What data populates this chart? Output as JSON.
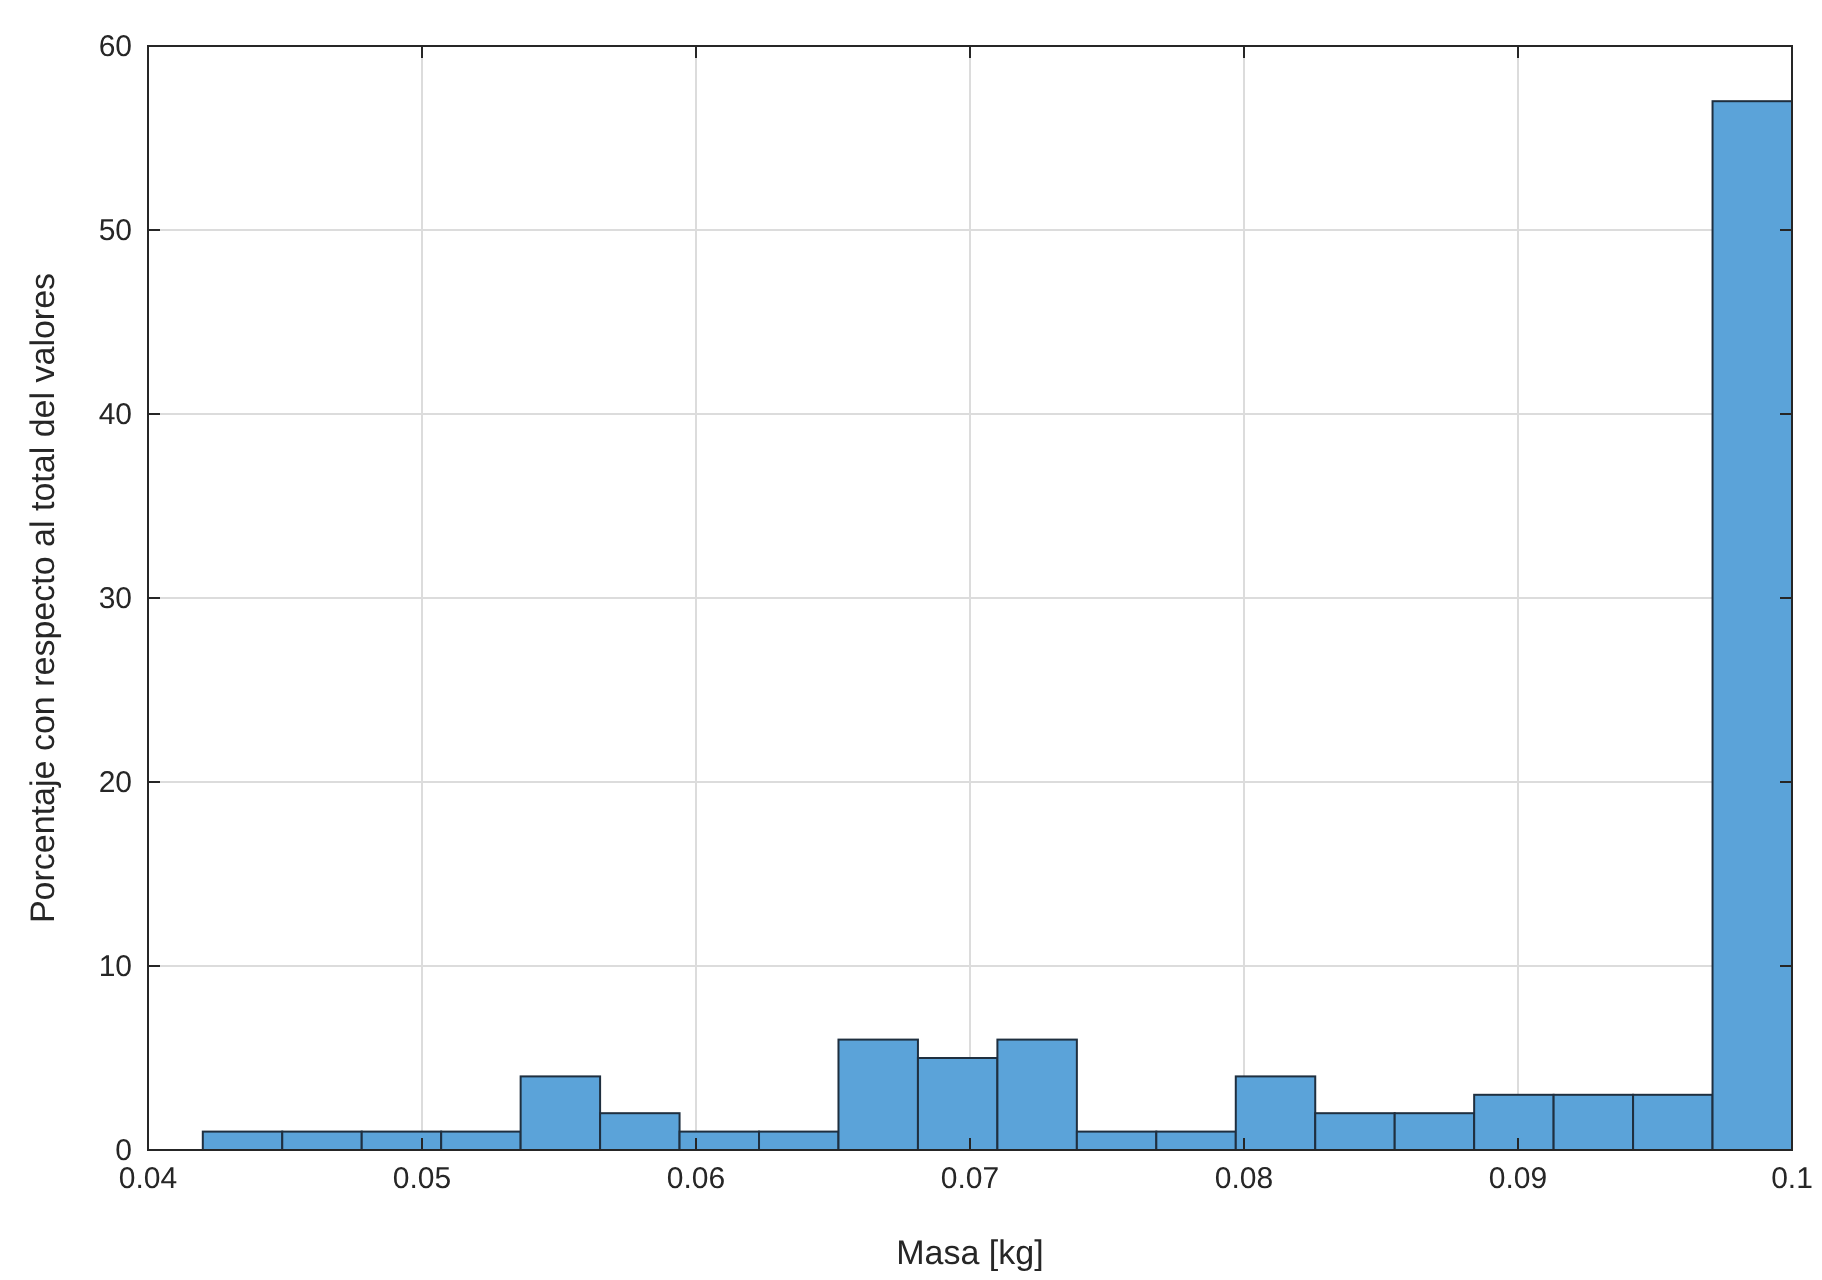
{
  "chart_data": {
    "type": "histogram",
    "xlabel": "Masa [kg]",
    "ylabel": "Porcentaje con respecto al total del valores",
    "bins": [
      0.042,
      0.0449,
      0.0478,
      0.0507,
      0.0536,
      0.0565,
      0.0594,
      0.0623,
      0.0652,
      0.0681,
      0.071,
      0.0739,
      0.0768,
      0.0797,
      0.0826,
      0.0855,
      0.0884,
      0.0913,
      0.0942,
      0.0971,
      0.1
    ],
    "values": [
      1,
      1,
      1,
      1,
      4,
      2,
      1,
      1,
      6,
      5,
      6,
      1,
      1,
      4,
      2,
      2,
      3,
      3,
      3,
      57
    ],
    "color": "#5ba3d9",
    "xlim": [
      0.04,
      0.1
    ],
    "xticks": [
      0.04,
      0.05,
      0.06,
      0.07,
      0.08,
      0.09,
      0.1
    ],
    "ylim": [
      0,
      60
    ],
    "yticks": [
      0,
      10,
      20,
      30,
      40,
      50,
      60
    ],
    "grid": true
  }
}
